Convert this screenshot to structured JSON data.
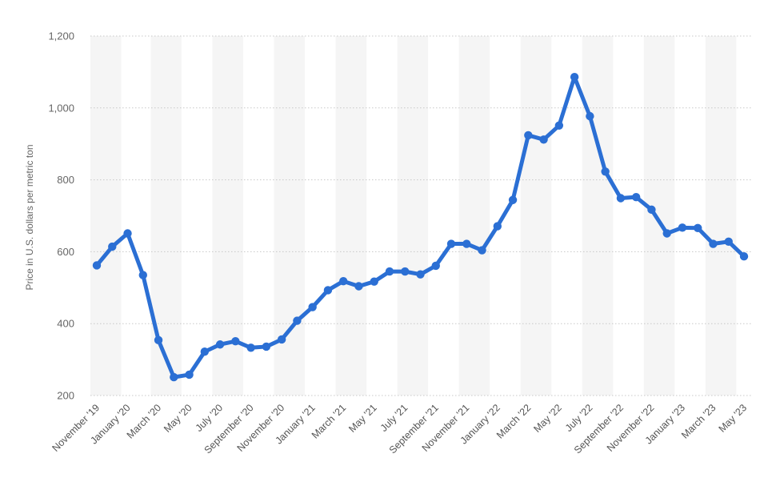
{
  "chart_data": {
    "type": "line",
    "ylabel": "Price in U.S. dollars per metric ton",
    "ylim": [
      200,
      1200
    ],
    "yticks": [
      200,
      400,
      600,
      800,
      1000,
      1200
    ],
    "ytick_labels": [
      "200",
      "400",
      "600",
      "800",
      "1,000",
      "1,200"
    ],
    "grid": true,
    "line_color": "#2b6fd4",
    "band_color": "#f5f5f5",
    "x_labels": [
      "November '19",
      "January '20",
      "March '20",
      "May '20",
      "July '20",
      "September '20",
      "November '20",
      "January '21",
      "March '21",
      "May '21",
      "July '21",
      "September '21",
      "November '21",
      "January '22",
      "March '22",
      "May '22",
      "July '22",
      "September '22",
      "November '22",
      "January '23",
      "March '23",
      "May '23"
    ],
    "series": [
      {
        "x": [
          "Nov 2019",
          "Dec 2019",
          "Jan 2020",
          "Feb 2020",
          "Mar 2020",
          "Apr 2020",
          "May 2020",
          "Jun 2020",
          "Jul 2020",
          "Aug 2020",
          "Sep 2020",
          "Oct 2020",
          "Nov 2020",
          "Dec 2020",
          "Jan 2021",
          "Feb 2021",
          "Mar 2021",
          "Apr 2021",
          "May 2021",
          "Jun 2021",
          "Jul 2021",
          "Aug 2021",
          "Sep 2021",
          "Oct 2021",
          "Nov 2021",
          "Dec 2021",
          "Jan 2022",
          "Feb 2022",
          "Mar 2022",
          "Apr 2022",
          "May 2022",
          "Jun 2022",
          "Jul 2022",
          "Aug 2022",
          "Sep 2022",
          "Oct 2022",
          "Nov 2022",
          "Dec 2022",
          "Jan 2023",
          "Feb 2023",
          "Mar 2023",
          "Apr 2023",
          "May 2023"
        ],
        "values": [
          562,
          614,
          651,
          535,
          354,
          251,
          258,
          322,
          342,
          351,
          333,
          336,
          356,
          408,
          446,
          493,
          518,
          504,
          517,
          545,
          545,
          537,
          561,
          622,
          622,
          604,
          671,
          744,
          924,
          912,
          951,
          1086,
          977,
          823,
          749,
          752,
          717,
          651,
          667,
          666,
          622,
          628,
          587
        ]
      }
    ]
  }
}
